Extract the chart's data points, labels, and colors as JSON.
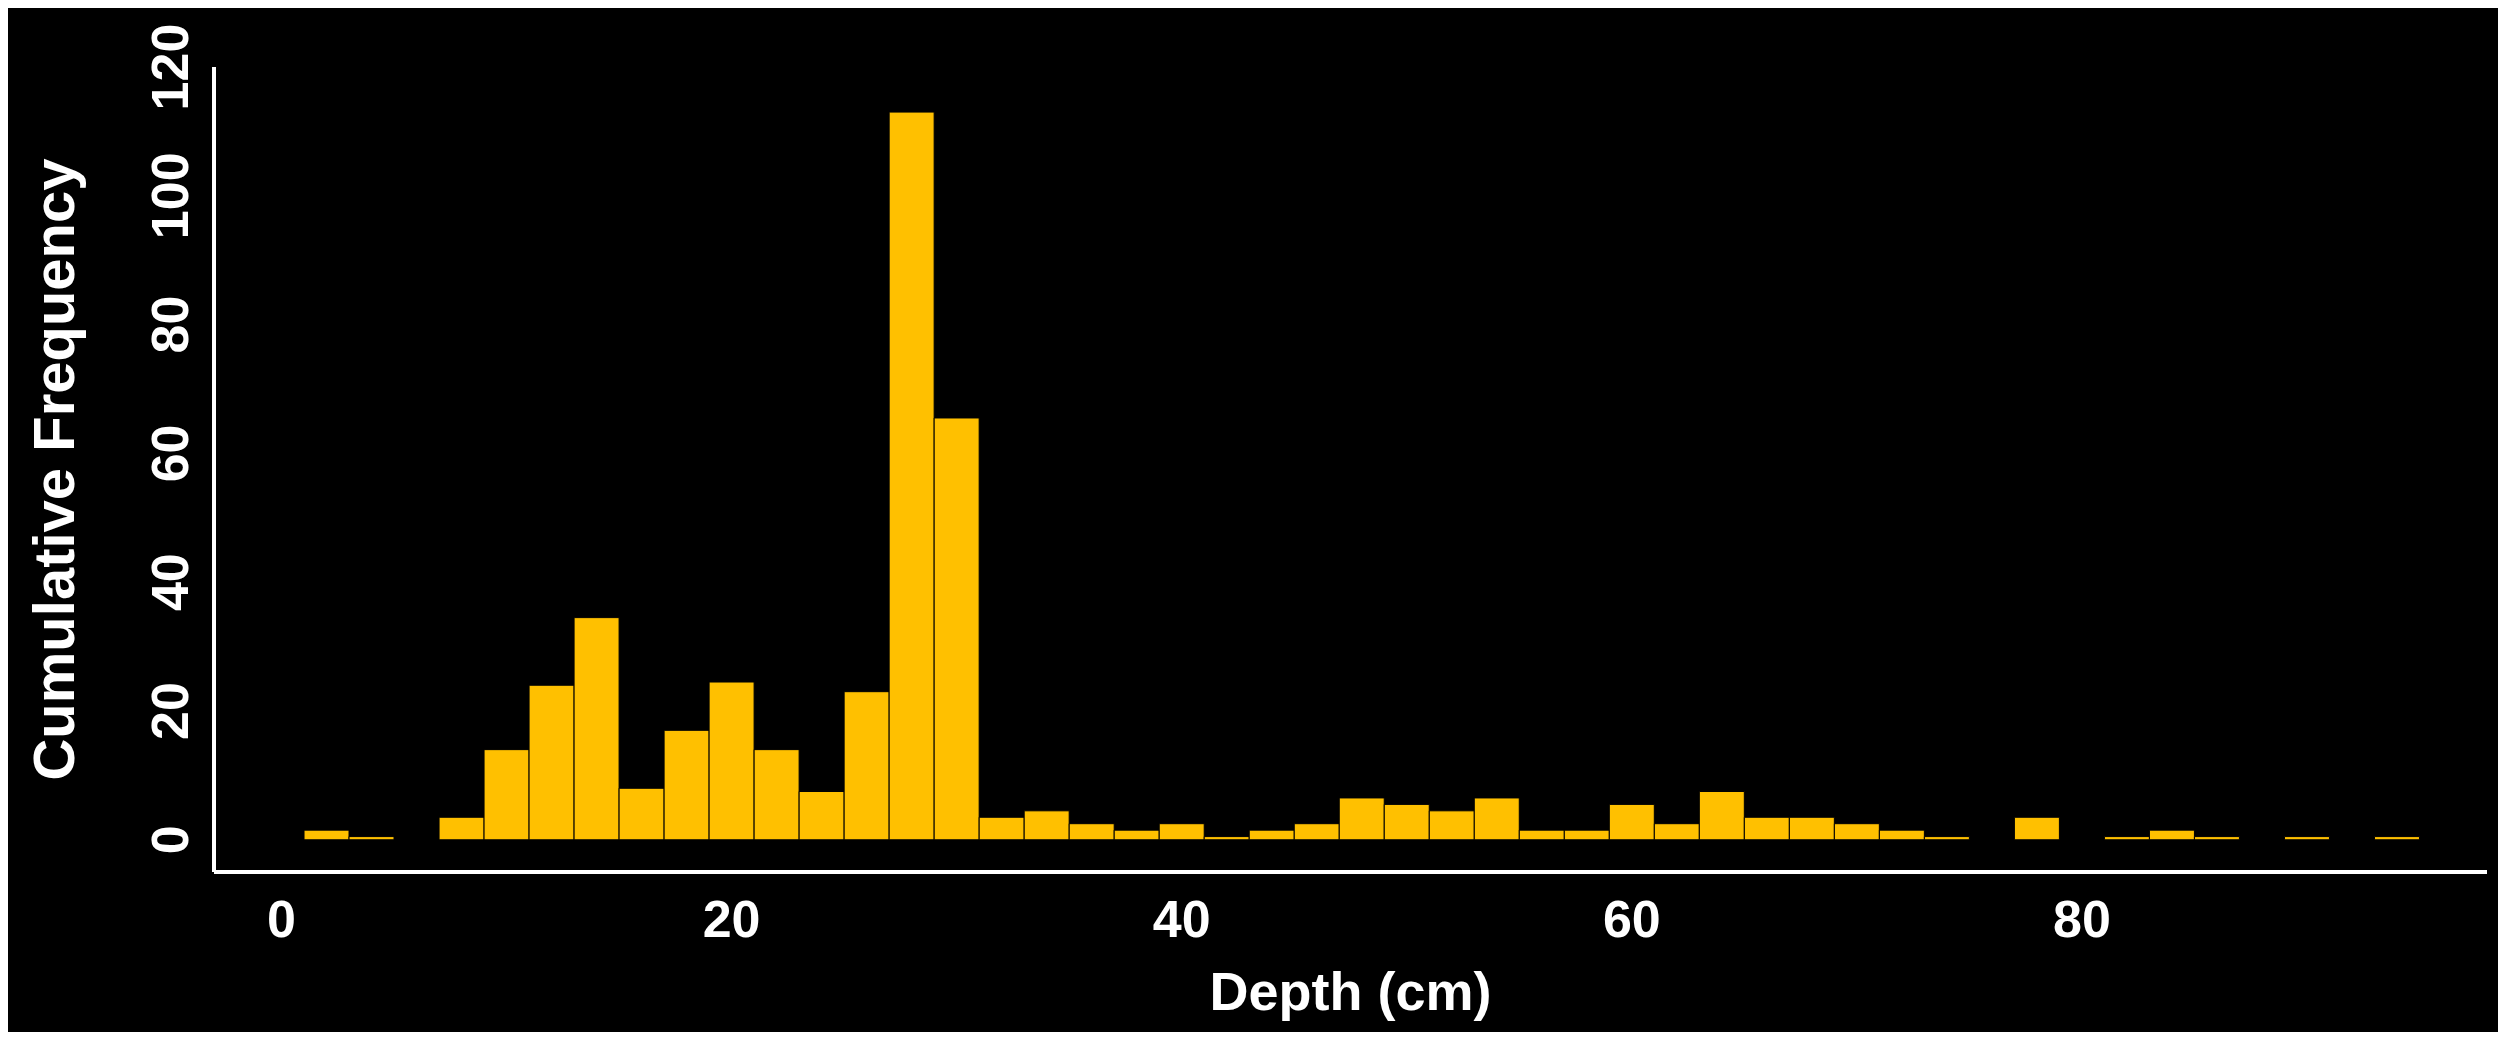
{
  "chart_data": {
    "type": "histogram",
    "xlabel": "Depth (cm)",
    "ylabel": "Cumulative Frequency",
    "bins": [
      1,
      3,
      5,
      7,
      9,
      11,
      13,
      15,
      17,
      19,
      21,
      23,
      25,
      27,
      29,
      31,
      33,
      35,
      37,
      39,
      41,
      43,
      45,
      47,
      49,
      51,
      53,
      55,
      57,
      59,
      61,
      63,
      65,
      67,
      69,
      71,
      73,
      75,
      77,
      79,
      81,
      83,
      85,
      87,
      89,
      91,
      93,
      95
    ],
    "values": [
      1.5,
      0.5,
      0,
      3.5,
      14,
      24,
      34.5,
      8,
      17,
      24.5,
      14,
      7.5,
      23,
      113,
      65.5,
      3.5,
      4.5,
      2.5,
      1.5,
      2.5,
      0.5,
      1.5,
      2.5,
      6.5,
      5.5,
      4.5,
      6.5,
      1.5,
      1.5,
      5.5,
      2.5,
      7.5,
      3.5,
      3.5,
      2.5,
      1.5,
      0.5,
      0,
      3.5,
      0,
      0.5,
      1.5,
      0.5,
      0,
      0.5,
      0,
      0.5
    ],
    "color": "#ffc000",
    "xlim": [
      -3,
      98
    ],
    "xticks": [
      0,
      20,
      40,
      60,
      80
    ],
    "ylim": [
      -5,
      120
    ],
    "yticks": [
      0,
      20,
      40,
      60,
      80,
      100,
      120
    ]
  }
}
